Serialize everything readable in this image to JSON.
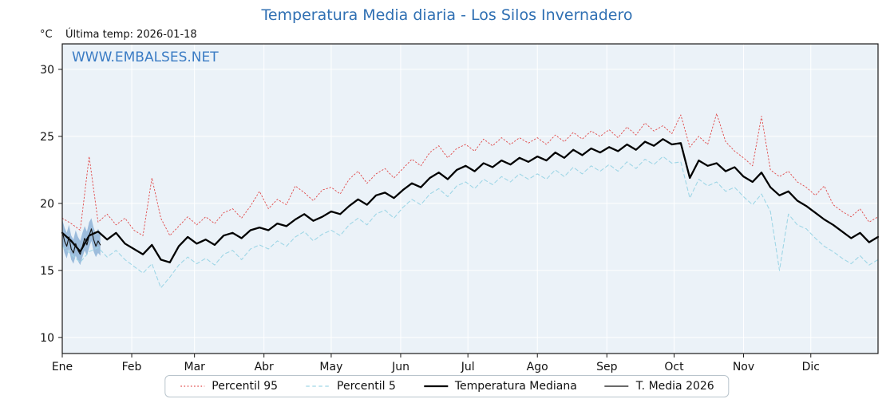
{
  "title": "Temperatura Media diaria - Los Silos Invernadero",
  "y_axis_unit": "°C",
  "subtitle": "Última temp: 2026-01-18",
  "watermark": "WWW.EMBALSES.NET",
  "colors": {
    "title_blue": "#3070b3",
    "watermark_blue": "#3b7cc4",
    "plot_bg": "#ebf2f8",
    "grid": "#ffffff",
    "axis_frame": "#1a1a1a",
    "percentil95": "#e04848",
    "percentil5": "#9fd6e6",
    "mediana": "#000000",
    "media2026": "#111111",
    "band_fill": "#5b8fc4"
  },
  "chart_data": {
    "type": "line",
    "title": "Temperatura Media diaria - Los Silos Invernadero",
    "xlabel": "",
    "ylabel": "°C",
    "x_unit": "day_of_year",
    "xlim": [
      1,
      365
    ],
    "ylim": [
      8.8,
      31.9
    ],
    "yticks": [
      10,
      15,
      20,
      25,
      30
    ],
    "grid": true,
    "legend_position": "bottom",
    "month_ticks": {
      "labels": [
        "Ene",
        "Feb",
        "Mar",
        "Abr",
        "May",
        "Jun",
        "Jul",
        "Ago",
        "Sep",
        "Oct",
        "Nov",
        "Dic"
      ],
      "days": [
        1,
        32,
        60,
        91,
        121,
        152,
        182,
        213,
        244,
        274,
        305,
        335
      ]
    },
    "series": [
      {
        "name": "Percentil 95",
        "style": "dotted",
        "color": "#e04848",
        "width": 0.9,
        "x": [
          1,
          5,
          9,
          13,
          17,
          21,
          25,
          29,
          33,
          37,
          41,
          45,
          49,
          53,
          57,
          61,
          65,
          69,
          73,
          77,
          81,
          85,
          89,
          93,
          97,
          101,
          105,
          109,
          113,
          117,
          121,
          125,
          129,
          133,
          137,
          141,
          145,
          149,
          153,
          157,
          161,
          165,
          169,
          173,
          177,
          181,
          185,
          189,
          193,
          197,
          201,
          205,
          209,
          213,
          217,
          221,
          225,
          229,
          233,
          237,
          241,
          245,
          249,
          253,
          257,
          261,
          265,
          269,
          273,
          277,
          281,
          285,
          289,
          293,
          297,
          301,
          305,
          309,
          313,
          317,
          321,
          325,
          329,
          333,
          337,
          341,
          345,
          349,
          353,
          357,
          361,
          365
        ],
        "values": [
          18.9,
          18.5,
          18.0,
          23.5,
          18.6,
          19.2,
          18.4,
          18.9,
          18.0,
          17.6,
          21.9,
          18.9,
          17.6,
          18.3,
          19.0,
          18.4,
          19.0,
          18.5,
          19.3,
          19.6,
          18.9,
          19.8,
          20.9,
          19.6,
          20.3,
          19.9,
          21.3,
          20.8,
          20.2,
          21.0,
          21.2,
          20.7,
          21.8,
          22.4,
          21.5,
          22.2,
          22.6,
          21.9,
          22.6,
          23.3,
          22.8,
          23.8,
          24.3,
          23.4,
          24.1,
          24.4,
          23.9,
          24.8,
          24.3,
          24.9,
          24.4,
          24.9,
          24.5,
          24.9,
          24.4,
          25.1,
          24.6,
          25.3,
          24.8,
          25.4,
          25.0,
          25.5,
          24.9,
          25.7,
          25.1,
          26.0,
          25.4,
          25.8,
          25.2,
          26.6,
          24.2,
          25.0,
          24.4,
          26.7,
          24.6,
          23.9,
          23.4,
          22.8,
          26.5,
          22.5,
          22.0,
          22.4,
          21.6,
          21.2,
          20.6,
          21.3,
          19.9,
          19.4,
          19.0,
          19.6,
          18.6,
          19.0
        ]
      },
      {
        "name": "Percentil 5",
        "style": "dashed",
        "color": "#9fd6e6",
        "width": 1.1,
        "x": [
          1,
          5,
          9,
          13,
          17,
          21,
          25,
          29,
          33,
          37,
          41,
          45,
          49,
          53,
          57,
          61,
          65,
          69,
          73,
          77,
          81,
          85,
          89,
          93,
          97,
          101,
          105,
          109,
          113,
          117,
          121,
          125,
          129,
          133,
          137,
          141,
          145,
          149,
          153,
          157,
          161,
          165,
          169,
          173,
          177,
          181,
          185,
          189,
          193,
          197,
          201,
          205,
          209,
          213,
          217,
          221,
          225,
          229,
          233,
          237,
          241,
          245,
          249,
          253,
          257,
          261,
          265,
          269,
          273,
          277,
          281,
          285,
          289,
          293,
          297,
          301,
          305,
          309,
          313,
          317,
          321,
          325,
          329,
          333,
          337,
          341,
          345,
          349,
          353,
          357,
          361,
          365
        ],
        "values": [
          16.8,
          16.2,
          15.6,
          16.4,
          16.7,
          16.0,
          16.5,
          15.8,
          15.3,
          14.8,
          15.5,
          13.7,
          14.5,
          15.4,
          16.0,
          15.5,
          15.9,
          15.4,
          16.2,
          16.5,
          15.8,
          16.6,
          16.9,
          16.6,
          17.2,
          16.8,
          17.5,
          17.9,
          17.2,
          17.7,
          18.0,
          17.6,
          18.4,
          18.9,
          18.4,
          19.2,
          19.5,
          18.9,
          19.7,
          20.3,
          19.9,
          20.7,
          21.1,
          20.5,
          21.3,
          21.6,
          21.1,
          21.8,
          21.4,
          22.0,
          21.6,
          22.2,
          21.8,
          22.2,
          21.8,
          22.5,
          22.0,
          22.7,
          22.2,
          22.8,
          22.4,
          22.9,
          22.4,
          23.1,
          22.6,
          23.3,
          22.9,
          23.5,
          23.0,
          23.1,
          20.4,
          21.8,
          21.3,
          21.6,
          20.9,
          21.2,
          20.5,
          19.9,
          20.7,
          19.4,
          15.0,
          19.2,
          18.4,
          18.1,
          17.4,
          16.8,
          16.4,
          15.9,
          15.5,
          16.1,
          15.4,
          15.8
        ]
      },
      {
        "name": "Temperatura Mediana",
        "style": "solid",
        "color": "#000000",
        "width": 2.3,
        "x": [
          1,
          5,
          9,
          13,
          17,
          21,
          25,
          29,
          33,
          37,
          41,
          45,
          49,
          53,
          57,
          61,
          65,
          69,
          73,
          77,
          81,
          85,
          89,
          93,
          97,
          101,
          105,
          109,
          113,
          117,
          121,
          125,
          129,
          133,
          137,
          141,
          145,
          149,
          153,
          157,
          161,
          165,
          169,
          173,
          177,
          181,
          185,
          189,
          193,
          197,
          201,
          205,
          209,
          213,
          217,
          221,
          225,
          229,
          233,
          237,
          241,
          245,
          249,
          253,
          257,
          261,
          265,
          269,
          273,
          277,
          281,
          285,
          289,
          293,
          297,
          301,
          305,
          309,
          313,
          317,
          321,
          325,
          329,
          333,
          337,
          341,
          345,
          349,
          353,
          357,
          361,
          365
        ],
        "values": [
          17.8,
          17.2,
          16.4,
          17.6,
          17.9,
          17.3,
          17.8,
          17.0,
          16.6,
          16.2,
          16.9,
          15.8,
          15.6,
          16.8,
          17.5,
          17.0,
          17.3,
          16.9,
          17.6,
          17.8,
          17.4,
          18.0,
          18.2,
          18.0,
          18.5,
          18.3,
          18.8,
          19.2,
          18.7,
          19.0,
          19.4,
          19.2,
          19.8,
          20.3,
          19.9,
          20.6,
          20.8,
          20.4,
          21.0,
          21.5,
          21.2,
          21.9,
          22.3,
          21.8,
          22.5,
          22.8,
          22.4,
          23.0,
          22.7,
          23.2,
          22.9,
          23.4,
          23.1,
          23.5,
          23.2,
          23.8,
          23.4,
          24.0,
          23.6,
          24.1,
          23.8,
          24.2,
          23.9,
          24.4,
          24.0,
          24.6,
          24.3,
          24.8,
          24.4,
          24.5,
          21.9,
          23.2,
          22.8,
          23.0,
          22.4,
          22.7,
          22.0,
          21.6,
          22.3,
          21.2,
          20.6,
          20.9,
          20.2,
          19.8,
          19.3,
          18.8,
          18.4,
          17.9,
          17.4,
          17.8,
          17.1,
          17.5
        ]
      },
      {
        "name": "T. Media 2026",
        "style": "solid",
        "color": "#111111",
        "width": 1.1,
        "x": [
          1,
          2,
          3,
          4,
          5,
          6,
          7,
          8,
          9,
          10,
          11,
          12,
          13,
          14,
          15,
          16,
          17,
          18
        ],
        "values": [
          17.9,
          17.2,
          16.8,
          17.5,
          16.6,
          16.3,
          17.0,
          16.5,
          16.2,
          16.8,
          17.4,
          16.9,
          17.6,
          18.1,
          17.3,
          16.8,
          17.2,
          16.9
        ]
      }
    ],
    "band_2026": {
      "x": [
        1,
        2,
        3,
        4,
        5,
        6,
        7,
        8,
        9,
        10,
        11,
        12,
        13,
        14,
        15,
        16,
        17,
        18
      ],
      "high": [
        18.8,
        18.2,
        17.8,
        18.4,
        17.6,
        17.3,
        18.0,
        17.5,
        17.2,
        17.8,
        18.3,
        17.9,
        18.6,
        18.9,
        18.2,
        17.7,
        18.1,
        17.8
      ],
      "low": [
        17.0,
        16.3,
        15.9,
        16.6,
        15.8,
        15.5,
        16.1,
        15.7,
        15.4,
        16.0,
        16.5,
        16.1,
        16.7,
        17.2,
        16.4,
        16.0,
        16.3,
        16.1
      ],
      "fill": "#5b8fc4",
      "opacity": 0.55
    }
  }
}
